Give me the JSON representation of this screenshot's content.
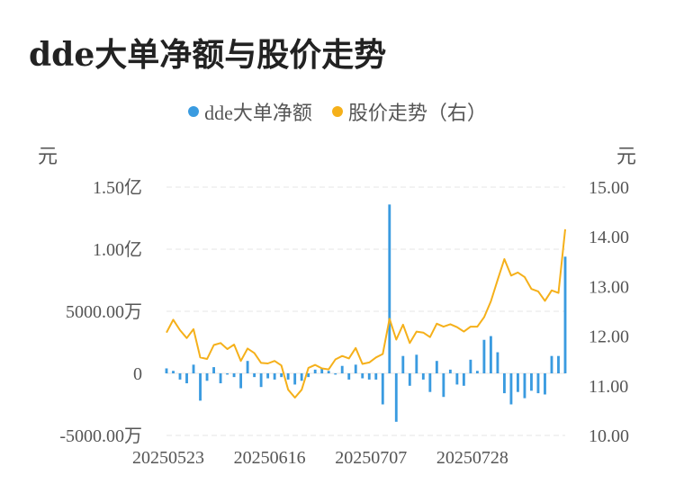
{
  "title": "dde大单净额与股价走势",
  "legend": [
    {
      "label": "dde大单净额",
      "color": "#3a9be0"
    },
    {
      "label": "股价走势（右）",
      "color": "#f5b01a"
    }
  ],
  "units": {
    "left": "元",
    "right": "元"
  },
  "chart_data": {
    "type": "bar+line",
    "left_axis": {
      "ticks": [
        -5000,
        0,
        5000,
        10000,
        15000
      ],
      "tick_labels": [
        "-5000.00万",
        "0",
        "5000.00万",
        "1.00亿",
        "1.50亿"
      ],
      "range": [
        -5000,
        15000
      ],
      "unit": "万元"
    },
    "right_axis": {
      "ticks": [
        10,
        11,
        12,
        13,
        14,
        15
      ],
      "tick_labels": [
        "10.00",
        "11.00",
        "12.00",
        "13.00",
        "14.00",
        "15.00"
      ],
      "range": [
        10,
        15
      ]
    },
    "x_tick_labels": [
      {
        "label": "20250523",
        "index": 0
      },
      {
        "label": "20250616",
        "index": 15
      },
      {
        "label": "20250707",
        "index": 30
      },
      {
        "label": "20250728",
        "index": 45
      }
    ],
    "grid": "horizontal dashed",
    "series": [
      {
        "name": "dde大单净额",
        "type": "bar",
        "color": "#3a9be0",
        "values": [
          400,
          200,
          -500,
          -800,
          700,
          -2200,
          -600,
          500,
          -800,
          -100,
          -300,
          -1200,
          1000,
          -300,
          -1100,
          -400,
          -500,
          -300,
          -500,
          -900,
          -600,
          -300,
          300,
          400,
          200,
          -100,
          600,
          -500,
          700,
          -400,
          -500,
          -500,
          -2500,
          13600,
          -3900,
          1400,
          -1000,
          1500,
          -500,
          -1500,
          1000,
          -1900,
          300,
          -900,
          -1000,
          1100,
          200,
          2700,
          3000,
          1700,
          -1600,
          -2500,
          -1500,
          -2000,
          -1400,
          -1600,
          -1700,
          1400,
          1400,
          9400
        ],
        "unit": "万元"
      },
      {
        "name": "股价走势（右）",
        "type": "line",
        "axis": "right",
        "color": "#f5b01a",
        "values": [
          12.07,
          12.33,
          12.12,
          11.96,
          12.14,
          11.57,
          11.54,
          11.82,
          11.86,
          11.74,
          11.83,
          11.5,
          11.75,
          11.66,
          11.46,
          11.45,
          11.5,
          11.41,
          10.92,
          10.76,
          10.92,
          11.36,
          11.42,
          11.35,
          11.33,
          11.53,
          11.6,
          11.55,
          11.76,
          11.44,
          11.47,
          11.57,
          11.64,
          12.35,
          11.93,
          12.23,
          11.86,
          12.09,
          12.07,
          11.98,
          12.25,
          12.19,
          12.24,
          12.18,
          12.09,
          12.19,
          12.19,
          12.38,
          12.7,
          13.13,
          13.55,
          13.22,
          13.28,
          13.19,
          12.95,
          12.9,
          12.71,
          12.92,
          12.87,
          14.15
        ]
      }
    ]
  }
}
